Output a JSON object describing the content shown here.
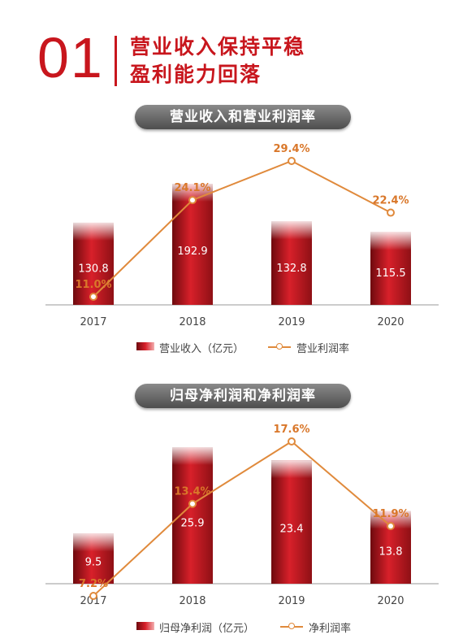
{
  "header": {
    "number": "01",
    "title_line1": "营业收入保持平稳",
    "title_line2": "盈利能力回落"
  },
  "colors": {
    "accent": "#c8161d",
    "line": "#e08a3c",
    "pill": "#6b6b6b"
  },
  "chart_data": [
    {
      "type": "bar",
      "title": "营业收入和营业利润率",
      "categories": [
        "2017",
        "2018",
        "2019",
        "2020"
      ],
      "series": [
        {
          "name": "营业收入（亿元）",
          "type": "bar",
          "values": [
            130.8,
            192.9,
            132.8,
            115.5
          ]
        },
        {
          "name": "营业利润率",
          "type": "line",
          "values": [
            11.0,
            24.1,
            29.4,
            22.4
          ],
          "labels": [
            "11.0%",
            "24.1%",
            "29.4%",
            "22.4%"
          ]
        }
      ],
      "bar_labels": [
        "130.8",
        "192.9",
        "132.8",
        "115.5"
      ],
      "legend_position": "bottom",
      "grid": false
    },
    {
      "type": "bar",
      "title": "归母净利润和净利润率",
      "categories": [
        "2017",
        "2018",
        "2019",
        "2020"
      ],
      "series": [
        {
          "name": "归母净利润（亿元）",
          "type": "bar",
          "values": [
            9.5,
            25.9,
            23.4,
            13.8
          ]
        },
        {
          "name": "净利润率",
          "type": "line",
          "values": [
            7.2,
            13.4,
            17.6,
            11.9
          ],
          "labels": [
            "7.2%",
            "13.4%",
            "17.6%",
            "11.9%"
          ]
        }
      ],
      "bar_labels": [
        "9.5",
        "25.9",
        "23.4",
        "13.8"
      ],
      "legend_position": "bottom",
      "grid": false
    }
  ]
}
